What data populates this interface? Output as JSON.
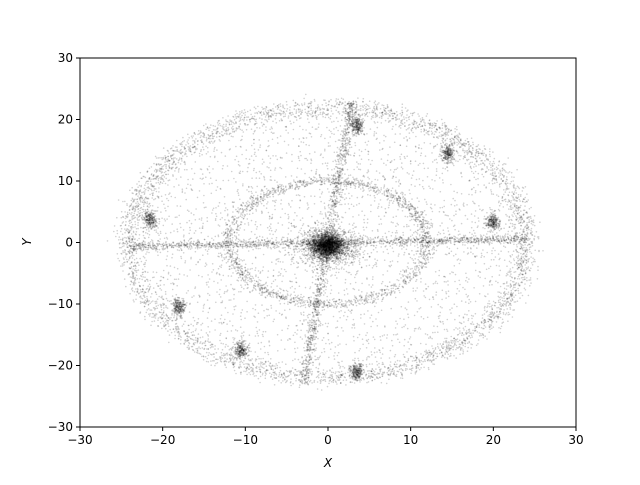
{
  "chart_data": {
    "type": "scatter",
    "title": "",
    "xlabel": "X",
    "ylabel": "Y",
    "xlim": [
      -30,
      30
    ],
    "ylim": [
      -30,
      30
    ],
    "xticks": [
      -30,
      -20,
      -10,
      0,
      10,
      20,
      30
    ],
    "yticks": [
      -30,
      -20,
      -10,
      0,
      10,
      20,
      30
    ],
    "grid": false,
    "legend": false,
    "point_color": "#000000",
    "marker": "dot",
    "description_of_density": {
      "central_cluster": {
        "x": 0,
        "y": -0.5,
        "extent": [
          -5,
          5
        ]
      },
      "inner_ring": {
        "center": [
          0,
          0
        ],
        "rx": 12,
        "ry": 10
      },
      "outer_ring": {
        "center": [
          0,
          0
        ],
        "rx": 24,
        "ry": 22
      },
      "dense_clumps": [
        {
          "x": 3.5,
          "y": 19
        },
        {
          "x": 14.5,
          "y": 14.5
        },
        {
          "x": -21.5,
          "y": 3.8
        },
        {
          "x": 20,
          "y": 3.3
        },
        {
          "x": 3.5,
          "y": -21
        },
        {
          "x": -10.5,
          "y": -17.5
        },
        {
          "x": -18,
          "y": -10.5
        }
      ]
    }
  }
}
